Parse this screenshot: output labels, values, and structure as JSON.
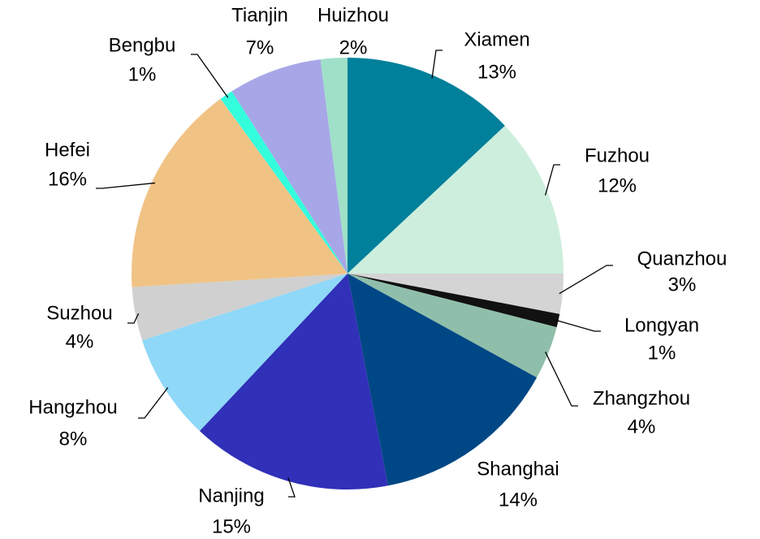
{
  "chart_data": {
    "type": "pie",
    "categories": [
      "Xiamen",
      "Fuzhou",
      "Quanzhou",
      "Longyan",
      "Zhangzhou",
      "Shanghai",
      "Nanjing",
      "Hangzhou",
      "Suzhou",
      "Hefei",
      "Bengbu",
      "Tianjin",
      "Huizhou"
    ],
    "values": [
      13,
      12,
      3,
      1,
      4,
      14,
      15,
      8,
      4,
      16,
      1,
      7,
      2
    ],
    "value_labels": [
      "13%",
      "12%",
      "3%",
      "1%",
      "4%",
      "14%",
      "15%",
      "8%",
      "4%",
      "16%",
      "1%",
      "7%",
      "2%"
    ],
    "colors": [
      "#00809b",
      "#cdeedd",
      "#d4d4d4",
      "#111111",
      "#8fbfaa",
      "#004785",
      "#3030b8",
      "#8fd8f8",
      "#d0d0d0",
      "#f0c385",
      "#33ffdd",
      "#a7a7e8",
      "#a0e0c8"
    ]
  }
}
